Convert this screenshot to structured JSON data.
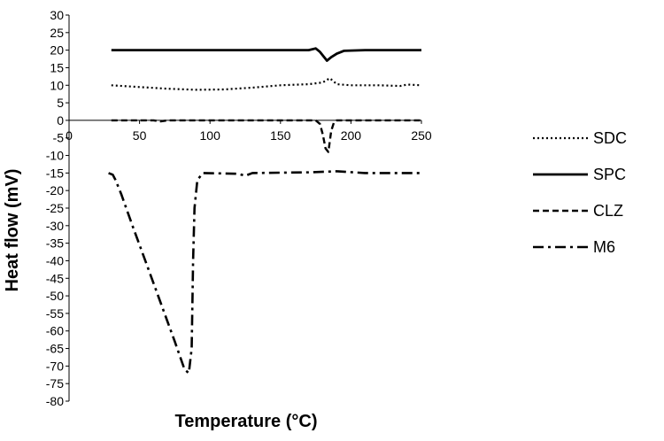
{
  "chart_data": {
    "type": "line",
    "title": "",
    "xlabel": "Temperature (°C)",
    "ylabel": "Heat flow (mV)",
    "xlim": [
      0,
      250
    ],
    "ylim": [
      -80,
      30
    ],
    "x_ticks": [
      0,
      50,
      100,
      150,
      200,
      250
    ],
    "y_ticks": [
      30,
      25,
      20,
      15,
      10,
      5,
      0,
      -5,
      -10,
      -15,
      -20,
      -25,
      -30,
      -35,
      -40,
      -45,
      -50,
      -55,
      -60,
      -65,
      -70,
      -75,
      -80
    ],
    "grid": false,
    "legend_position": "right",
    "series": [
      {
        "name": "SDC",
        "style": "dotted",
        "points": [
          [
            30,
            10
          ],
          [
            50,
            9.5
          ],
          [
            70,
            9
          ],
          [
            90,
            8.7
          ],
          [
            110,
            8.8
          ],
          [
            130,
            9.3
          ],
          [
            150,
            10
          ],
          [
            170,
            10.3
          ],
          [
            180,
            10.8
          ],
          [
            185,
            12
          ],
          [
            190,
            10.3
          ],
          [
            200,
            10
          ],
          [
            220,
            10
          ],
          [
            235,
            9.8
          ],
          [
            240,
            10.2
          ],
          [
            250,
            10
          ]
        ]
      },
      {
        "name": "SPC",
        "style": "solid",
        "points": [
          [
            30,
            20
          ],
          [
            60,
            20
          ],
          [
            100,
            20
          ],
          [
            150,
            20
          ],
          [
            170,
            20
          ],
          [
            175,
            20.5
          ],
          [
            178,
            19.5
          ],
          [
            181,
            18
          ],
          [
            183,
            17
          ],
          [
            186,
            18
          ],
          [
            190,
            19
          ],
          [
            195,
            19.8
          ],
          [
            210,
            20
          ],
          [
            250,
            20
          ]
        ]
      },
      {
        "name": "CLZ",
        "style": "dashed",
        "points": [
          [
            30,
            0
          ],
          [
            60,
            0
          ],
          [
            65,
            -0.3
          ],
          [
            70,
            0
          ],
          [
            150,
            0
          ],
          [
            175,
            0
          ],
          [
            178,
            -1
          ],
          [
            180,
            -4
          ],
          [
            182,
            -8
          ],
          [
            184,
            -9
          ],
          [
            186,
            -3
          ],
          [
            188,
            -0.5
          ],
          [
            190,
            0
          ],
          [
            250,
            0
          ]
        ]
      },
      {
        "name": "M6",
        "style": "dash-dot",
        "points": [
          [
            28,
            -15
          ],
          [
            31,
            -15.5
          ],
          [
            33,
            -17
          ],
          [
            37,
            -21
          ],
          [
            45,
            -30
          ],
          [
            55,
            -41
          ],
          [
            65,
            -52
          ],
          [
            75,
            -63
          ],
          [
            82,
            -71
          ],
          [
            85,
            -72
          ],
          [
            87,
            -65
          ],
          [
            88,
            -40
          ],
          [
            89,
            -25
          ],
          [
            91,
            -17
          ],
          [
            95,
            -15
          ],
          [
            120,
            -15.2
          ],
          [
            125,
            -15.8
          ],
          [
            130,
            -15
          ],
          [
            170,
            -14.8
          ],
          [
            190,
            -14.5
          ],
          [
            210,
            -15
          ],
          [
            250,
            -15
          ]
        ]
      }
    ]
  }
}
